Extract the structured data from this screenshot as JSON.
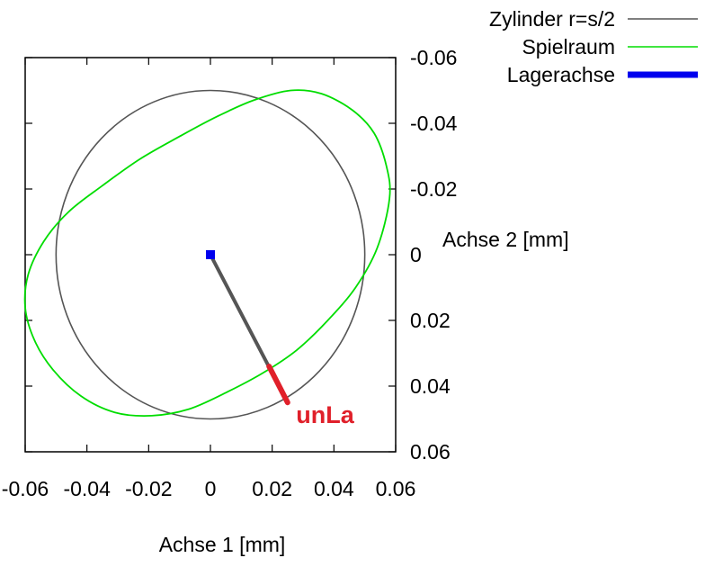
{
  "chart_data": {
    "type": "line",
    "xlabel": "Achse 1 [mm]",
    "ylabel": "Achse 2 [mm]",
    "xlim": [
      -0.06,
      0.06
    ],
    "ylim": [
      -0.06,
      0.06
    ],
    "y_axis_inverted": true,
    "y_axis_side": "right",
    "x_ticks": [
      -0.06,
      -0.04,
      -0.02,
      0,
      0.02,
      0.04,
      0.06
    ],
    "x_tick_labels": [
      "-0.06",
      "-0.04",
      "-0.02",
      "0",
      "0.02",
      "0.04",
      "0.06"
    ],
    "y_ticks": [
      -0.06,
      -0.04,
      -0.02,
      0,
      0.02,
      0.04,
      0.06
    ],
    "y_tick_labels": [
      "-0.06",
      "-0.04",
      "-0.02",
      "0",
      "0.02",
      "0.04",
      "0.06"
    ],
    "grid": false,
    "legend_position": "top-right-outside",
    "series": [
      {
        "name": "Zylinder r=s/2",
        "color": "#555555",
        "kind": "circle",
        "center": [
          0,
          0
        ],
        "radius": 0.05
      },
      {
        "name": "Spielraum",
        "color": "#00dd00",
        "kind": "closed-curve",
        "x": [
          0.058,
          0.057,
          0.053,
          0.046,
          0.036,
          0.026,
          0.014,
          0.002,
          -0.01,
          -0.023,
          -0.035,
          -0.046,
          -0.054,
          -0.059,
          -0.06,
          -0.057,
          -0.051,
          -0.042,
          -0.031,
          -0.019,
          -0.007,
          0.005,
          0.017,
          0.028,
          0.038,
          0.047,
          0.054,
          0.058
        ],
        "y": [
          -0.017,
          -0.027,
          -0.037,
          -0.044,
          -0.049,
          -0.05,
          -0.047,
          -0.042,
          -0.036,
          -0.029,
          -0.021,
          -0.013,
          -0.004,
          0.006,
          0.016,
          0.026,
          0.035,
          0.043,
          0.048,
          0.049,
          0.047,
          0.042,
          0.036,
          0.029,
          0.02,
          0.01,
          -0.002,
          -0.017
        ]
      },
      {
        "name": "Lagerachse",
        "color": "#0000ee",
        "kind": "point",
        "x": [
          0
        ],
        "y": [
          0
        ]
      }
    ],
    "unbalance_vector": {
      "from": [
        0,
        0
      ],
      "to": [
        0.025,
        0.045
      ],
      "color": "#555555",
      "tip_from": [
        0.019,
        0.034
      ],
      "tip_color": "#e0202a"
    },
    "annotations": [
      {
        "text": "unLa",
        "color": "#e0202a",
        "x": 0.026,
        "y": 0.048
      }
    ]
  }
}
